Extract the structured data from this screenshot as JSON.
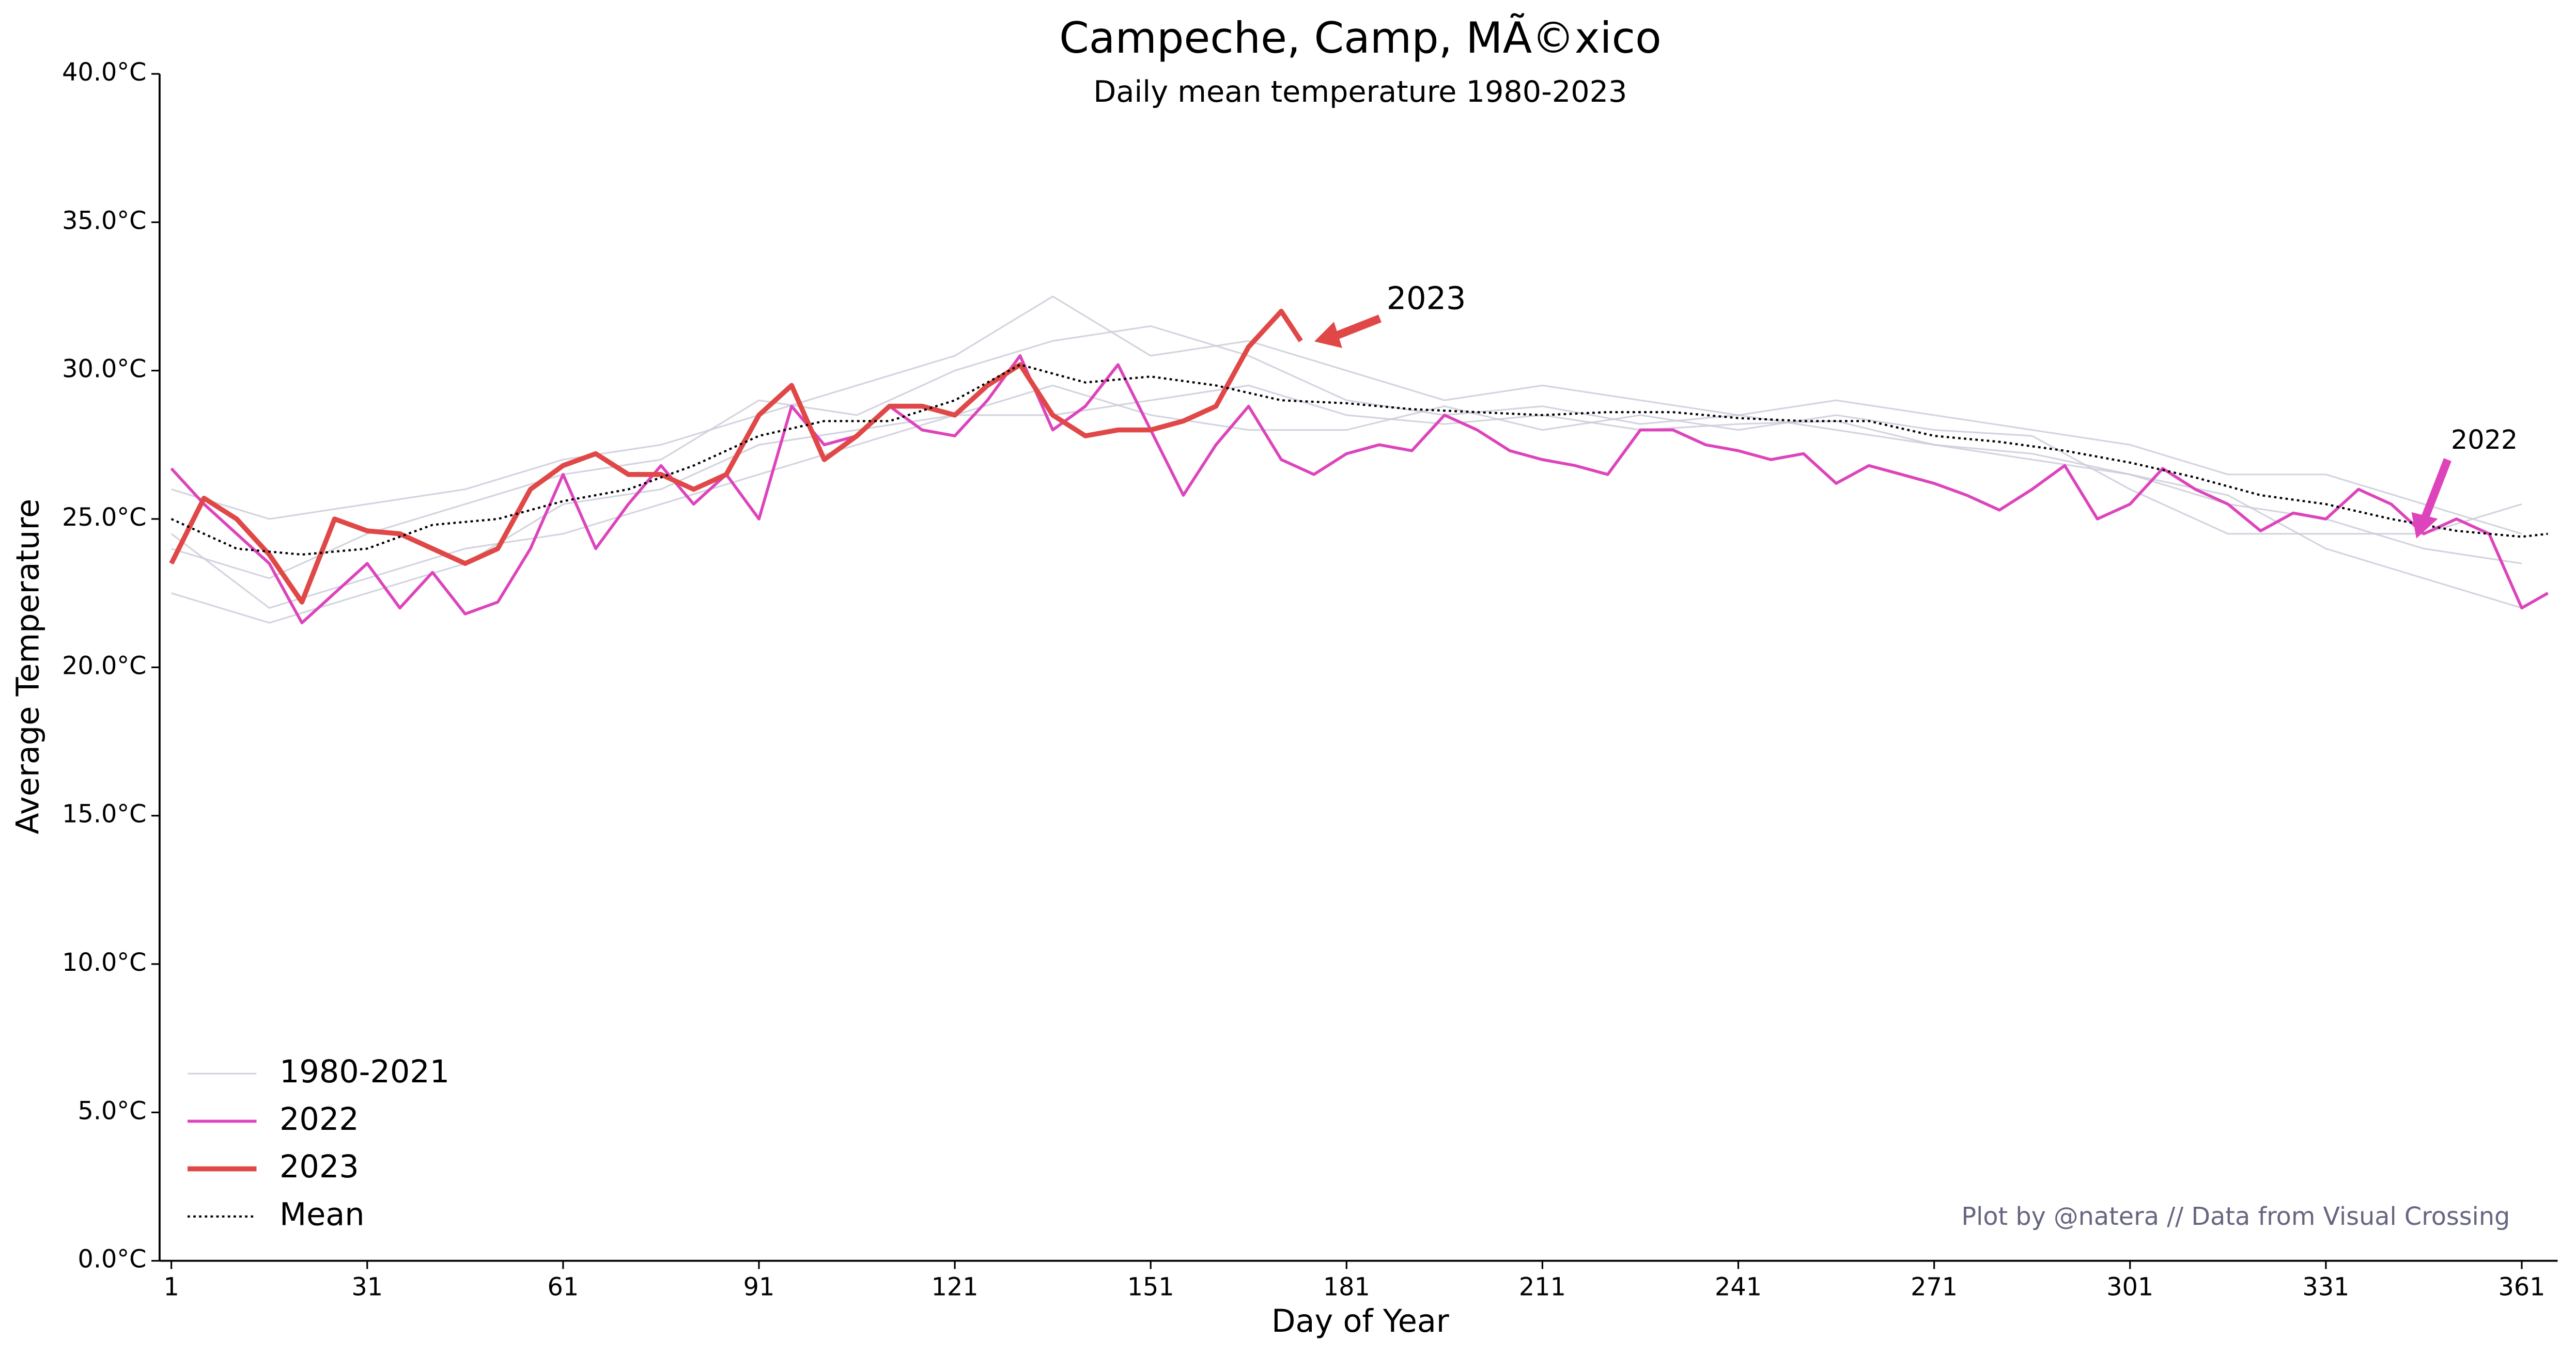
{
  "chart_data": {
    "type": "line",
    "title": "Campeche, Camp, MÃ©xico",
    "subtitle": "Daily mean temperature 1980-2023",
    "x_label": "Day of Year",
    "y_label": "Average Temperature",
    "credit": "Plot by @natera // Data from Visual Crossing",
    "annotations": [
      "2023",
      "2022"
    ],
    "xlim": [
      -0.8,
      366.5
    ],
    "ylim": [
      0,
      40
    ],
    "xticks": [
      1,
      31,
      61,
      91,
      121,
      151,
      181,
      211,
      241,
      271,
      301,
      331,
      361
    ],
    "yticks": [
      {
        "value": 0,
        "label": "0.0°C"
      },
      {
        "value": 5,
        "label": "5.0°C"
      },
      {
        "value": 10,
        "label": "10.0°C"
      },
      {
        "value": 15,
        "label": "15.0°C"
      },
      {
        "value": 20,
        "label": "20.0°C"
      },
      {
        "value": 25,
        "label": "25.0°C"
      },
      {
        "value": 30,
        "label": "30.0°C"
      },
      {
        "value": 35,
        "label": "35.0°C"
      },
      {
        "value": 40,
        "label": "40.0°C"
      }
    ],
    "legend": "lower left",
    "series": [
      {
        "name": "1980-2021",
        "color": "#c9c9d9",
        "x": [
          1,
          16,
          31,
          46,
          61,
          76,
          91,
          106,
          121,
          136,
          151,
          166,
          181,
          196,
          211,
          226,
          241,
          256,
          271,
          286,
          301,
          316,
          331,
          346,
          361
        ],
        "values": [
          [
            24,
            23,
            24.5,
            25.5,
            26.5,
            27,
            29,
            28.5,
            30,
            31,
            31.5,
            30.5,
            29,
            28.5,
            28.8,
            28.2,
            28.5,
            28.0,
            27.5,
            27.0,
            26.5,
            25.5,
            25.0,
            24.0,
            23.5
          ],
          [
            22.5,
            21.5,
            22.5,
            23.5,
            25.5,
            26.0,
            27.5,
            28.0,
            28.5,
            29.5,
            28.5,
            28.0,
            28.0,
            28.8,
            28.0,
            28.5,
            28.0,
            28.5,
            28.0,
            27.8,
            26.0,
            24.5,
            24.5,
            24.5,
            25.5
          ],
          [
            26,
            25,
            25.5,
            26,
            27,
            27.5,
            28.5,
            29.5,
            30.5,
            32.5,
            30.5,
            31.0,
            30.0,
            29.0,
            29.5,
            29.0,
            28.5,
            29.0,
            28.5,
            28.0,
            27.5,
            26.5,
            26.5,
            25.5,
            24.5
          ],
          [
            24.5,
            22.0,
            23.0,
            24.0,
            24.5,
            25.5,
            26.5,
            27.5,
            28.5,
            28.5,
            29.0,
            29.5,
            28.5,
            28.2,
            28.5,
            28.0,
            28.2,
            28.3,
            27.5,
            27.2,
            26.5,
            25.8,
            24.0,
            23.0,
            22.0
          ]
        ]
      },
      {
        "name": "2022",
        "color": "#dd44bb",
        "x": [
          1,
          6,
          11,
          16,
          21,
          26,
          31,
          36,
          41,
          46,
          51,
          56,
          61,
          66,
          71,
          76,
          81,
          86,
          91,
          96,
          101,
          106,
          111,
          116,
          121,
          126,
          131,
          136,
          141,
          146,
          151,
          156,
          161,
          166,
          171,
          176,
          181,
          186,
          191,
          196,
          201,
          206,
          211,
          216,
          221,
          226,
          231,
          236,
          241,
          246,
          251,
          256,
          261,
          266,
          271,
          276,
          281,
          286,
          291,
          296,
          301,
          306,
          311,
          316,
          321,
          326,
          331,
          336,
          341,
          346,
          351,
          356,
          361,
          365
        ],
        "values": [
          26.7,
          25.5,
          24.5,
          23.5,
          21.5,
          22.5,
          23.5,
          22.0,
          23.2,
          21.8,
          22.2,
          24.0,
          26.5,
          24.0,
          25.5,
          26.8,
          25.5,
          26.5,
          25.0,
          28.8,
          27.5,
          27.8,
          28.8,
          28.0,
          27.8,
          29.0,
          30.5,
          28.0,
          28.8,
          30.2,
          28.0,
          25.8,
          27.5,
          28.8,
          27.0,
          26.5,
          27.2,
          27.5,
          27.3,
          28.5,
          28.0,
          27.3,
          27.0,
          26.8,
          26.5,
          28.0,
          28.0,
          27.5,
          27.3,
          27.0,
          27.2,
          26.2,
          26.8,
          26.5,
          26.2,
          25.8,
          25.3,
          26.0,
          26.8,
          25.0,
          25.5,
          26.7,
          26.0,
          25.5,
          24.6,
          25.2,
          25.0,
          26.0,
          25.5,
          24.5,
          25.0,
          24.5,
          22.0,
          22.5
        ]
      },
      {
        "name": "2023",
        "color": "#e04848",
        "x": [
          1,
          6,
          11,
          16,
          21,
          26,
          31,
          36,
          41,
          46,
          51,
          56,
          61,
          66,
          71,
          76,
          81,
          86,
          91,
          96,
          101,
          106,
          111,
          116,
          121,
          126,
          131,
          136,
          141,
          146,
          151,
          156,
          161,
          166,
          171,
          174
        ],
        "values": [
          23.5,
          25.7,
          25.0,
          23.8,
          22.2,
          25.0,
          24.6,
          24.5,
          24.0,
          23.5,
          24.0,
          26.0,
          26.8,
          27.2,
          26.5,
          26.5,
          26.0,
          26.5,
          28.5,
          29.5,
          27.0,
          27.8,
          28.8,
          28.8,
          28.5,
          29.5,
          30.2,
          28.5,
          27.8,
          28.0,
          28.0,
          28.3,
          28.8,
          30.8,
          32.0,
          31.0
        ]
      },
      {
        "name": "Mean",
        "color": "#000000",
        "x": [
          1,
          11,
          21,
          31,
          41,
          51,
          61,
          71,
          81,
          91,
          101,
          111,
          121,
          131,
          141,
          151,
          161,
          171,
          181,
          191,
          201,
          211,
          221,
          231,
          241,
          251,
          261,
          271,
          281,
          291,
          301,
          311,
          321,
          331,
          341,
          351,
          361,
          365
        ],
        "values": [
          25.0,
          24.0,
          23.8,
          24.0,
          24.8,
          25.0,
          25.6,
          26.0,
          26.8,
          27.8,
          28.3,
          28.3,
          29.0,
          30.2,
          29.6,
          29.8,
          29.5,
          29.0,
          28.9,
          28.7,
          28.6,
          28.5,
          28.6,
          28.6,
          28.4,
          28.3,
          28.3,
          27.8,
          27.6,
          27.3,
          26.9,
          26.4,
          25.8,
          25.5,
          25.0,
          24.6,
          24.4,
          24.5
        ]
      }
    ]
  }
}
